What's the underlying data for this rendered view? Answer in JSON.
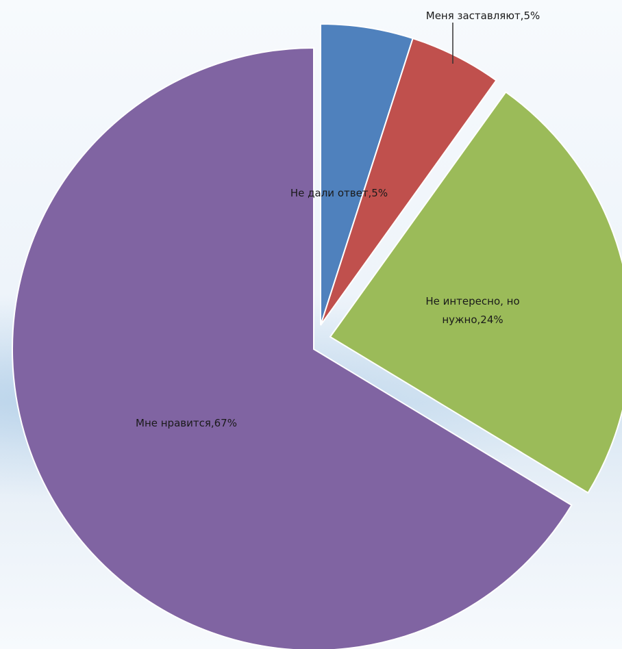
{
  "chart_data": {
    "type": "pie",
    "title": "",
    "slices": [
      {
        "name": "Не дали ответ",
        "value": 5,
        "label": "Не дали ответ,5%",
        "color": "#4f81bd"
      },
      {
        "name": "Меня заставляют",
        "value": 5,
        "label": "Меня заставляют,5%",
        "color": "#c0504d"
      },
      {
        "name": "Не интересно, но нужно",
        "value": 24,
        "label_lines": [
          "Не интересно, но",
          "нужно,24%"
        ],
        "color": "#9bbb59"
      },
      {
        "name": "Мне нравится",
        "value": 67,
        "label": "Мне нравится,67%",
        "color": "#8064a2"
      }
    ],
    "exploded": true,
    "legend": "none"
  }
}
